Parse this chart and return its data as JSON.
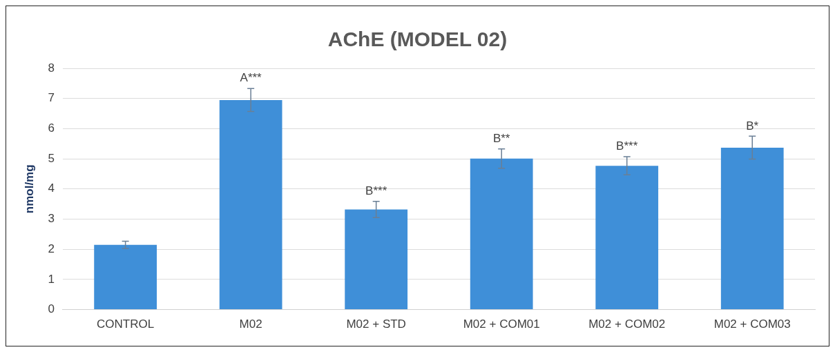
{
  "chart_data": {
    "type": "bar",
    "title": "AChE (MODEL 02)",
    "ylabel": "nmol/mg",
    "categories": [
      "CONTROL",
      "M02",
      "M02 + STD",
      "M02 + COM01",
      "M02 + COM02",
      "M02 + COM03"
    ],
    "values": [
      2.15,
      6.95,
      3.32,
      5.01,
      4.77,
      5.37
    ],
    "errors": [
      0.12,
      0.38,
      0.27,
      0.32,
      0.3,
      0.38
    ],
    "color": "#3f8fd8",
    "ylim": [
      0,
      8
    ],
    "yticks": [
      0,
      1,
      2,
      3,
      4,
      5,
      6,
      7,
      8
    ],
    "grid": "y",
    "legend": false,
    "annotations": [
      {
        "text": "A***",
        "x": "M02",
        "y": 7.33
      },
      {
        "text": "B***",
        "x": "M02 + STD",
        "y": 3.59
      },
      {
        "text": "B**",
        "x": "M02 + COM01",
        "y": 5.33
      },
      {
        "text": "B***",
        "x": "M02 + COM02",
        "y": 5.07
      },
      {
        "text": "B*",
        "x": "M02 + COM03",
        "y": 5.75
      }
    ]
  }
}
